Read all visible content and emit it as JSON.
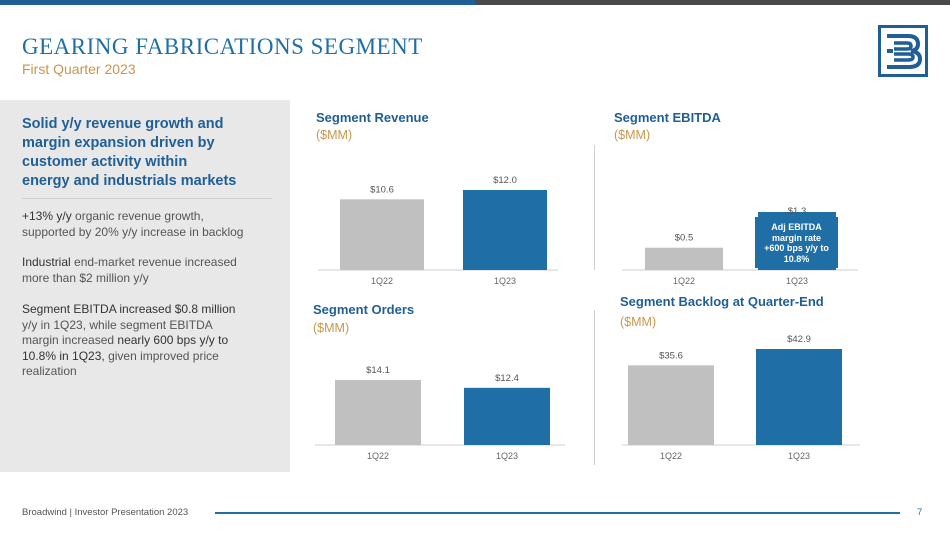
{
  "header": {
    "title": "GEARING FABRICATIONS SEGMENT",
    "subtitle": "First Quarter 2023"
  },
  "left_panel": {
    "heading_lines": [
      "Solid y/y revenue growth and",
      "margin expansion driven by",
      "customer activity within",
      "energy and industrials markets"
    ],
    "bullets": [
      {
        "lines": [
          {
            "hl": "+13% y/y",
            "rest": " organic revenue growth,"
          },
          {
            "hl": "",
            "rest": "supported by 20% y/y increase in backlog"
          }
        ]
      },
      {
        "lines": [
          {
            "hl": "Industrial",
            "rest": " end-market revenue increased"
          },
          {
            "hl": "",
            "rest": "more than $2 million y/y"
          }
        ]
      },
      {
        "lines": [
          {
            "hl": "Segment EBITDA increased $0.8 million",
            "rest": ""
          },
          {
            "hl": "",
            "rest": "y/y in 1Q23, while segment EBITDA"
          },
          {
            "hl": "",
            "rest": "margin increased "
          },
          {
            "hl": "10.8% in 1Q23,",
            "rest": " given improved price"
          },
          {
            "hl": "",
            "rest": "realization"
          }
        ],
        "extra_hl": "nearly 600 bps y/y to"
      }
    ]
  },
  "colors": {
    "prior_bar": "#c0c0c0",
    "current_bar": "#1f6fa6",
    "title_blue": "#1f5f96",
    "unit_gold": "#c9964b"
  },
  "chart_data": [
    {
      "type": "bar",
      "title": "Segment Revenue",
      "unit": "($MM)",
      "categories": [
        "1Q22",
        "1Q23"
      ],
      "values": [
        10.6,
        12.0
      ],
      "labels": [
        "$10.6",
        "$12.0"
      ]
    },
    {
      "type": "bar",
      "title": "Segment EBITDA",
      "unit": "($MM)",
      "categories": [
        "1Q22",
        "1Q23"
      ],
      "values": [
        0.5,
        1.3
      ],
      "labels": [
        "$0.5",
        "$1.3"
      ],
      "annotation": [
        "Adj EBITDA",
        "margin rate",
        "+600 bps y/y to",
        "10.8%"
      ]
    },
    {
      "type": "bar",
      "title": "Segment Orders",
      "unit": "($MM)",
      "categories": [
        "1Q22",
        "1Q23"
      ],
      "values": [
        14.1,
        12.4
      ],
      "labels": [
        "$14.1",
        "$12.4"
      ]
    },
    {
      "type": "bar",
      "title": "Segment Backlog at Quarter-End",
      "unit": "($MM)",
      "categories": [
        "1Q22",
        "1Q23"
      ],
      "values": [
        35.6,
        42.9
      ],
      "labels": [
        "$35.6",
        "$42.9"
      ]
    }
  ],
  "footer": {
    "text": "Broadwind  |  Investor Presentation 2023",
    "page": "7"
  }
}
